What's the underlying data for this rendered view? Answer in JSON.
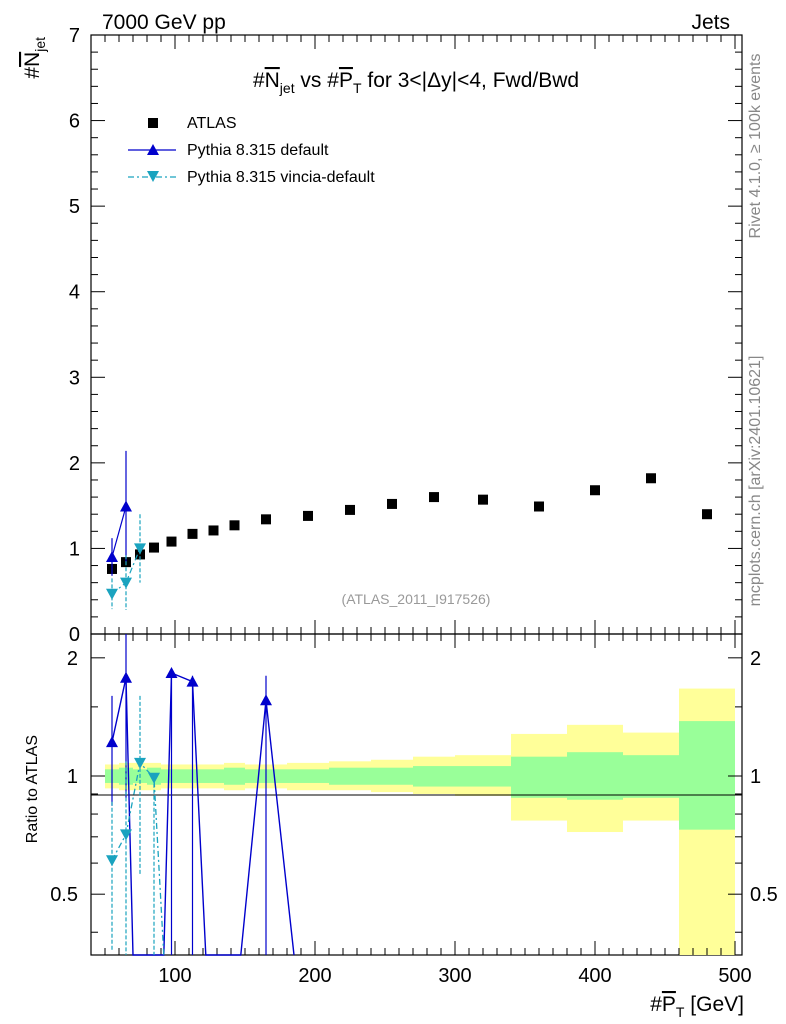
{
  "header": {
    "left": "7000 GeV pp",
    "right": "Jets"
  },
  "side": {
    "rivet": "Rivet 4.1.0, ≥ 100k events",
    "mcplots": "mcplots.cern.ch [arXiv:2401.10621]"
  },
  "title": {
    "prefix": "#",
    "n": "N",
    "n_sub": "jet",
    "mid": " vs #",
    "p": "P",
    "p_sub": "T",
    "suffix": " for 3<|Δy|<4, Fwd/Bwd"
  },
  "ylabel_top": {
    "prefix": "#",
    "n": "N",
    "n_sub": "jet"
  },
  "ylabel_bottom": "Ratio to ATLAS",
  "xlabel": {
    "prefix": "#",
    "p": "P",
    "p_sub": "T",
    "unit": " [GeV]"
  },
  "analysis_id": "(ATLAS_2011_I917526)",
  "colors": {
    "data": "#000000",
    "default": "#0000cc",
    "vincia": "#1aa3bf",
    "band_inner": "#99ff99",
    "band_outer": "#ffff99"
  },
  "chart_data": [
    {
      "type": "scatter",
      "panel": "main",
      "xlim": [
        40,
        505
      ],
      "ylim": [
        0,
        7
      ],
      "yticks": [
        "0",
        "1",
        "2",
        "3",
        "4",
        "5",
        "6",
        "7"
      ],
      "series": [
        {
          "name": "ATLAS",
          "x": [
            55,
            65,
            75,
            85,
            97.5,
            112.5,
            127.5,
            142.5,
            165,
            195,
            225,
            255,
            285,
            320,
            360,
            400,
            440,
            480
          ],
          "y": [
            0.76,
            0.84,
            0.93,
            1.01,
            1.08,
            1.17,
            1.21,
            1.27,
            1.34,
            1.38,
            1.45,
            1.52,
            1.6,
            1.57,
            1.49,
            1.68,
            1.82,
            1.4
          ]
        },
        {
          "name": "Pythia 8.315 default",
          "x": [
            55,
            65
          ],
          "y": [
            0.9,
            1.49
          ],
          "yerr": [
            0.22,
            0.65
          ]
        },
        {
          "name": "Pythia 8.315 vincia-default",
          "x": [
            55,
            65,
            75
          ],
          "y": [
            0.47,
            0.6,
            1.0
          ],
          "yerr": [
            0.18,
            0.32,
            0.4
          ]
        }
      ]
    },
    {
      "type": "line",
      "panel": "ratio",
      "xlim": [
        40,
        505
      ],
      "ylim": [
        0.35,
        2.3
      ],
      "yscale": "log",
      "xticks": [
        "100",
        "200",
        "300",
        "400",
        "500"
      ],
      "yticks": [
        "0.5",
        "1",
        "2"
      ],
      "bins": [
        50,
        60,
        70,
        80,
        90,
        105,
        120,
        135,
        150,
        180,
        210,
        240,
        270,
        300,
        340,
        380,
        420,
        460,
        500
      ],
      "band_inner": {
        "lo": [
          0.96,
          0.95,
          0.96,
          0.95,
          0.96,
          0.96,
          0.96,
          0.95,
          0.96,
          0.96,
          0.95,
          0.95,
          0.94,
          0.94,
          0.88,
          0.87,
          0.88,
          0.73
        ],
        "hi": [
          1.04,
          1.05,
          1.04,
          1.05,
          1.04,
          1.04,
          1.04,
          1.05,
          1.04,
          1.04,
          1.05,
          1.05,
          1.06,
          1.06,
          1.12,
          1.15,
          1.13,
          1.38
        ]
      },
      "band_outer": {
        "lo": [
          0.93,
          0.92,
          0.92,
          0.92,
          0.93,
          0.93,
          0.93,
          0.92,
          0.93,
          0.92,
          0.92,
          0.91,
          0.9,
          0.89,
          0.77,
          0.72,
          0.77,
          0.2
        ],
        "hi": [
          1.07,
          1.08,
          1.08,
          1.08,
          1.07,
          1.07,
          1.07,
          1.08,
          1.07,
          1.08,
          1.09,
          1.1,
          1.12,
          1.13,
          1.28,
          1.35,
          1.29,
          1.67
        ]
      },
      "series": [
        {
          "name": "Pythia 8.315 default",
          "x": [
            55,
            65,
            97.5,
            112.5,
            165
          ],
          "y": [
            1.22,
            1.78,
            1.83,
            1.74,
            1.56
          ],
          "yerr": [
            0.38,
            0.9,
            0,
            0,
            0
          ]
        },
        {
          "name": "Pythia 8.315 vincia-default",
          "x": [
            55,
            65,
            75,
            85
          ],
          "y": [
            0.61,
            0.71,
            1.08,
            0.99
          ],
          "yerr": [
            0.25,
            0.38,
            0.52,
            0
          ]
        }
      ]
    }
  ]
}
